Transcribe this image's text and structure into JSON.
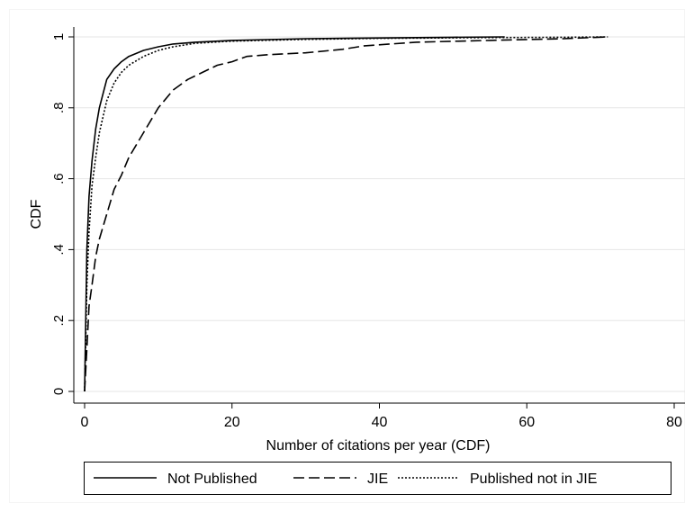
{
  "chart_data": {
    "type": "line",
    "title": "",
    "xlabel": "Number of citations per year (CDF)",
    "ylabel": "CDF",
    "xlim": [
      0,
      80
    ],
    "ylim": [
      0,
      1
    ],
    "x_ticks": [
      0,
      20,
      40,
      60,
      80
    ],
    "x_tick_labels": [
      "0",
      "20",
      "40",
      "60",
      "80"
    ],
    "y_ticks": [
      0,
      0.2,
      0.4,
      0.6,
      0.8,
      1
    ],
    "y_tick_labels": [
      "0",
      ".2",
      ".4",
      ".6",
      ".8",
      "1"
    ],
    "grid": "horizontal",
    "legend": "bottom",
    "series": [
      {
        "name": "Not Published",
        "dash": "solid",
        "x": [
          0,
          0.3,
          0.6,
          1,
          1.5,
          2,
          2.5,
          3,
          4,
          5,
          6,
          8,
          10,
          12,
          15,
          20,
          30,
          40,
          50,
          57
        ],
        "y": [
          0,
          0.4,
          0.55,
          0.65,
          0.74,
          0.8,
          0.84,
          0.88,
          0.91,
          0.93,
          0.945,
          0.962,
          0.972,
          0.98,
          0.985,
          0.99,
          0.995,
          0.997,
          0.999,
          1.0
        ]
      },
      {
        "name": "JIE",
        "dash": "long-dash",
        "x": [
          0,
          0.3,
          0.6,
          1,
          1.5,
          2,
          3,
          4,
          5,
          6,
          8,
          10,
          12,
          14,
          16,
          18,
          20,
          22,
          25,
          30,
          35,
          38,
          45,
          55,
          65,
          71
        ],
        "y": [
          0,
          0.12,
          0.24,
          0.3,
          0.38,
          0.43,
          0.5,
          0.57,
          0.61,
          0.66,
          0.73,
          0.8,
          0.85,
          0.88,
          0.9,
          0.92,
          0.93,
          0.945,
          0.95,
          0.955,
          0.965,
          0.975,
          0.985,
          0.99,
          0.995,
          1.0
        ]
      },
      {
        "name": "Published not in JIE",
        "dash": "dotted",
        "x": [
          0,
          0.3,
          0.6,
          1,
          1.5,
          2,
          3,
          4,
          5,
          6,
          8,
          10,
          12,
          15,
          20,
          30,
          40,
          55,
          65,
          71
        ],
        "y": [
          0,
          0.3,
          0.45,
          0.58,
          0.66,
          0.73,
          0.82,
          0.87,
          0.9,
          0.92,
          0.945,
          0.962,
          0.972,
          0.982,
          0.988,
          0.993,
          0.996,
          0.998,
          0.999,
          1.0
        ]
      }
    ]
  }
}
